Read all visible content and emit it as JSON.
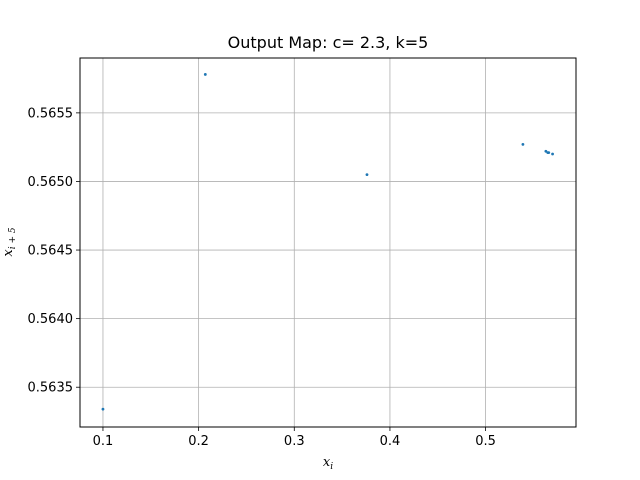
{
  "chart_data": {
    "type": "scatter",
    "title": "Output Map: c= 2.3, k=5",
    "xlabel": {
      "base": "x",
      "sub": "i"
    },
    "ylabel": {
      "base": "x",
      "sub": "i + 5"
    },
    "xlim": [
      0.076,
      0.5945
    ],
    "ylim": [
      0.56321,
      0.5659
    ],
    "xticks": [
      0.1,
      0.2,
      0.3,
      0.4,
      0.5
    ],
    "xtick_labels": [
      "0.1",
      "0.2",
      "0.3",
      "0.4",
      "0.5"
    ],
    "yticks": [
      0.5635,
      0.564,
      0.5645,
      0.565,
      0.5655
    ],
    "ytick_labels": [
      "0.5635",
      "0.5640",
      "0.5645",
      "0.5650",
      "0.5655"
    ],
    "grid": true,
    "marker_color": "#1f77b4",
    "points": [
      {
        "x": 0.1,
        "y": 0.56334
      },
      {
        "x": 0.207,
        "y": 0.56578
      },
      {
        "x": 0.376,
        "y": 0.56505
      },
      {
        "x": 0.539,
        "y": 0.56527
      },
      {
        "x": 0.563,
        "y": 0.56522
      },
      {
        "x": 0.565,
        "y": 0.56521
      },
      {
        "x": 0.566,
        "y": 0.56521
      },
      {
        "x": 0.57,
        "y": 0.5652
      }
    ]
  }
}
